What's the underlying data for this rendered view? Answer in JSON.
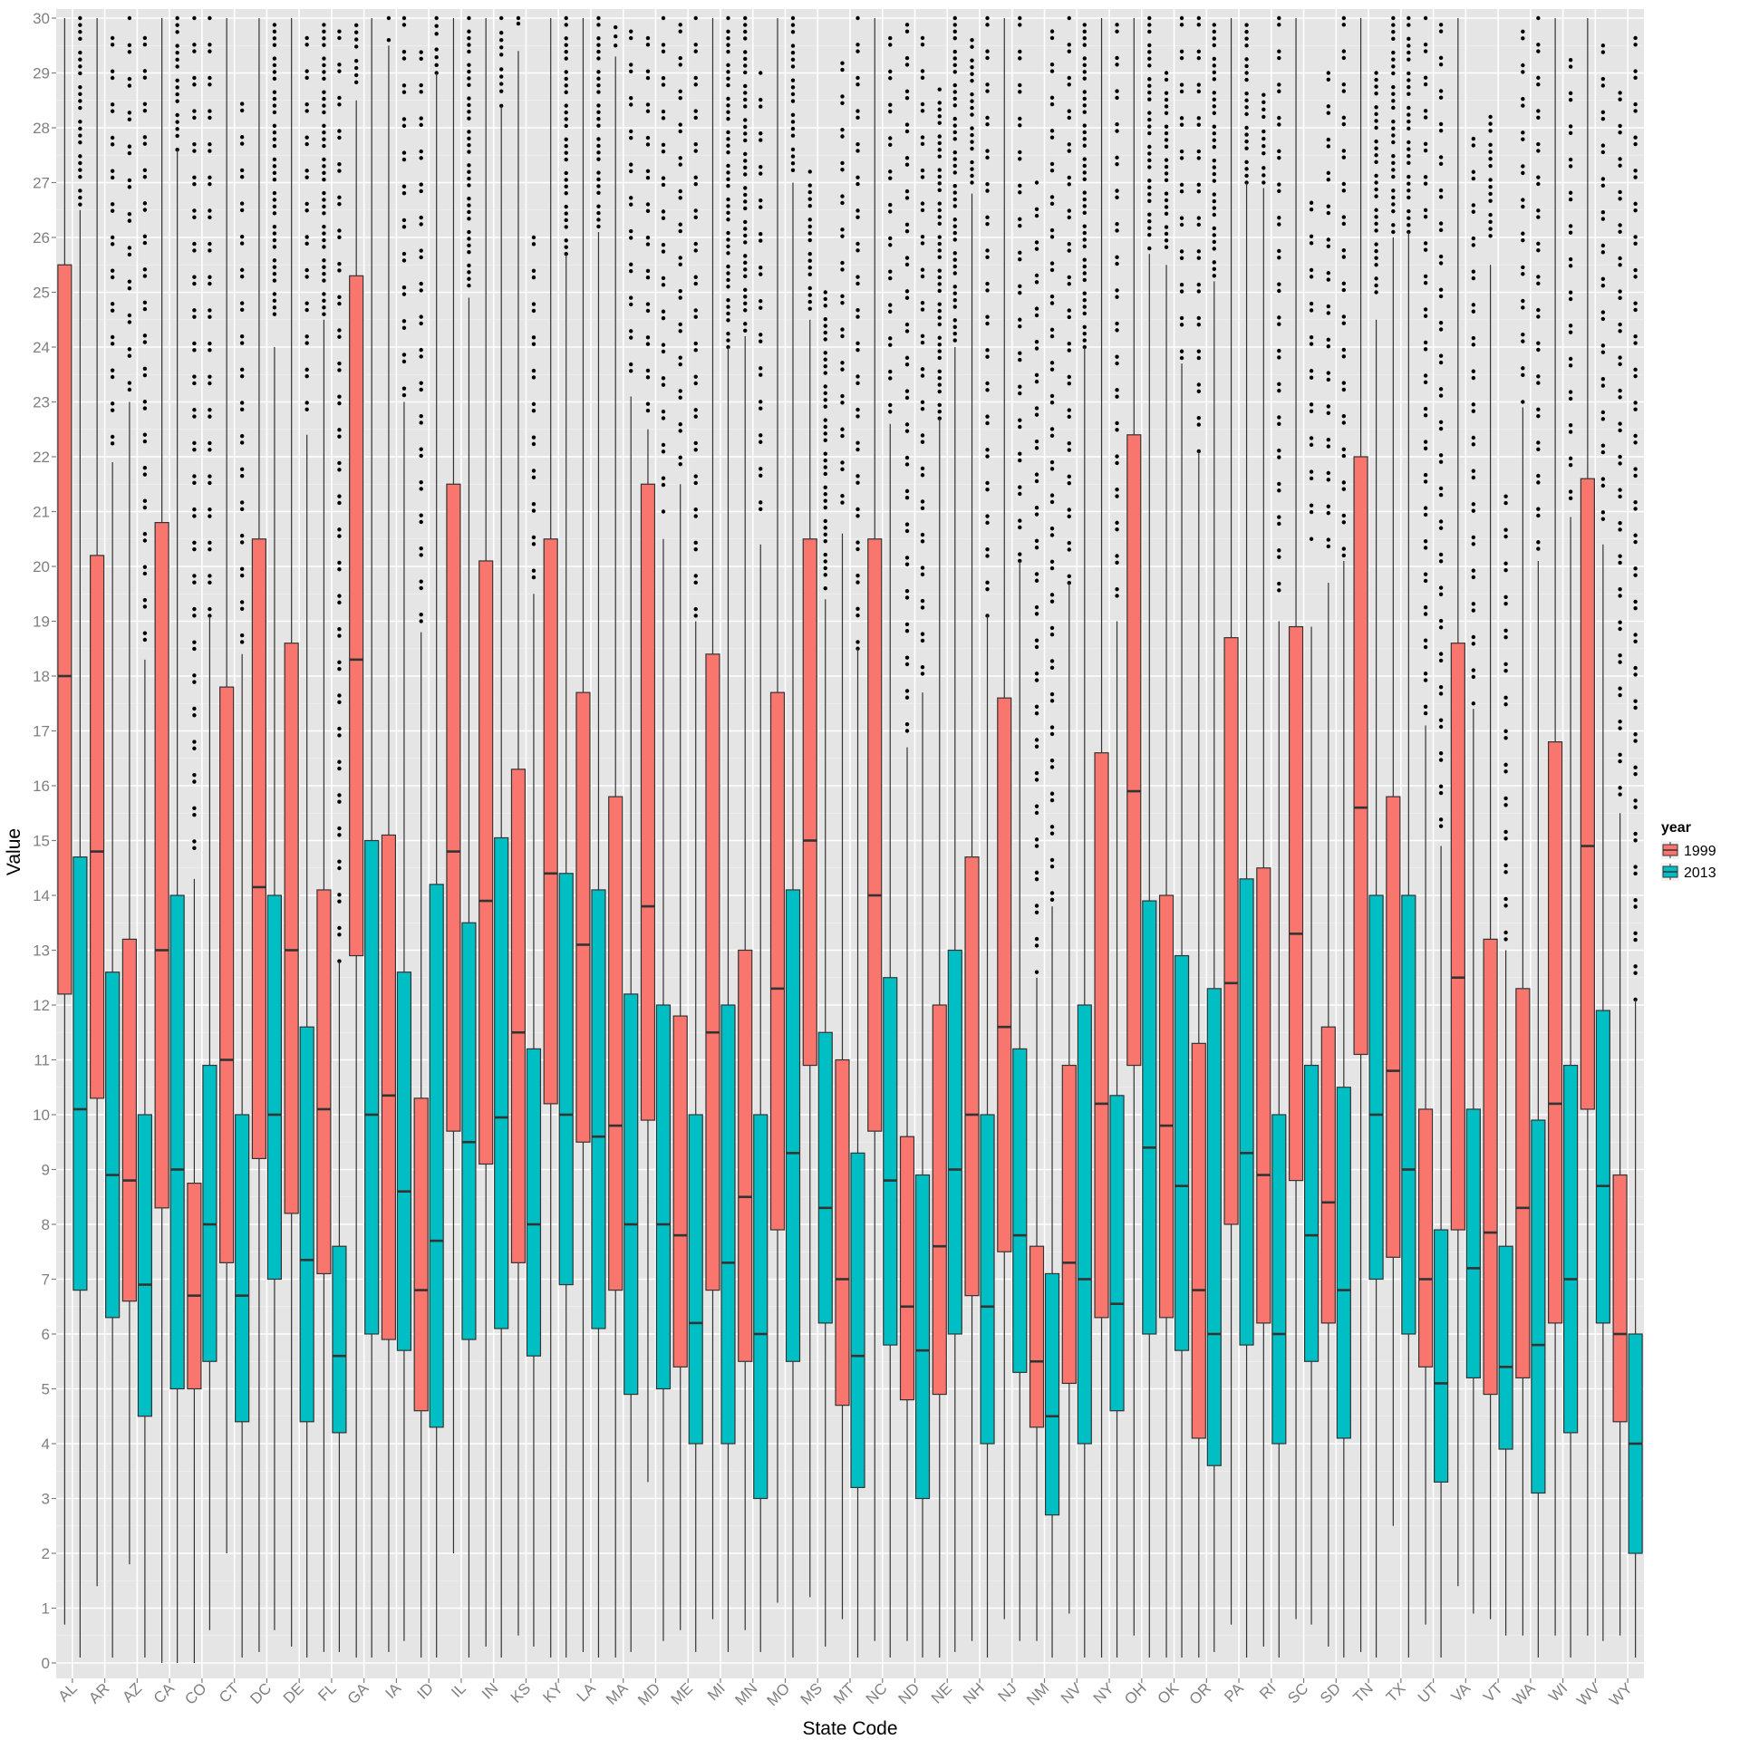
{
  "chart_data": {
    "type": "boxplot",
    "xlabel": "State Code",
    "ylabel": "Value",
    "ylim": [
      0,
      30
    ],
    "yticks": [
      0,
      1,
      2,
      3,
      4,
      5,
      6,
      7,
      8,
      9,
      10,
      11,
      12,
      13,
      14,
      15,
      16,
      17,
      18,
      19,
      20,
      21,
      22,
      23,
      24,
      25,
      26,
      27,
      28,
      29,
      30
    ],
    "grid": true,
    "legend": {
      "title": "year",
      "position": "right",
      "entries": [
        {
          "name": "1999",
          "color": "#F8766D"
        },
        {
          "name": "2013",
          "color": "#00BFC4"
        }
      ]
    },
    "stat_fields": [
      "whisker_low",
      "q1",
      "median",
      "q3",
      "whisker_high",
      "outliers_from",
      "outliers_to"
    ],
    "groups": [
      {
        "state": "AL",
        "y1999": [
          0.7,
          12.2,
          18.0,
          25.5,
          30,
          null,
          null
        ],
        "y2013": [
          0.1,
          6.8,
          10.1,
          14.7,
          26.5,
          26.6,
          30
        ]
      },
      {
        "state": "AR",
        "y1999": [
          1.4,
          10.3,
          14.8,
          20.2,
          30,
          null,
          null
        ],
        "y2013": [
          0.1,
          6.3,
          8.9,
          12.6,
          21.9,
          22,
          30
        ]
      },
      {
        "state": "AZ",
        "y1999": [
          1.8,
          6.6,
          8.8,
          13.2,
          23,
          23.1,
          30
        ],
        "y2013": [
          0.1,
          4.5,
          6.9,
          10.0,
          18.3,
          18.3,
          30
        ]
      },
      {
        "state": "CA",
        "y1999": [
          0,
          8.3,
          13.0,
          20.8,
          30,
          null,
          null
        ],
        "y2013": [
          0,
          5.0,
          9.0,
          14.0,
          27.6,
          27.6,
          30
        ]
      },
      {
        "state": "CO",
        "y1999": [
          0,
          5.0,
          6.7,
          8.75,
          14.3,
          14.5,
          30
        ],
        "y2013": [
          0.6,
          5.5,
          8.0,
          10.9,
          19.1,
          19.1,
          30
        ]
      },
      {
        "state": "CT",
        "y1999": [
          2.0,
          7.3,
          11.0,
          17.8,
          30,
          null,
          null
        ],
        "y2013": [
          0.1,
          4.4,
          6.7,
          10.0,
          18.4,
          18.5,
          28.8
        ]
      },
      {
        "state": "DC",
        "y1999": [
          0.2,
          9.2,
          14.15,
          20.5,
          30,
          null,
          null
        ],
        "y2013": [
          0.6,
          7.0,
          10.0,
          14.0,
          24,
          24.6,
          30
        ]
      },
      {
        "state": "DE",
        "y1999": [
          0.3,
          8.2,
          13.0,
          18.6,
          30,
          null,
          null
        ],
        "y2013": [
          0.1,
          4.4,
          7.35,
          11.6,
          22.4,
          22.5,
          30
        ]
      },
      {
        "state": "FL",
        "y1999": [
          0.2,
          7.1,
          10.1,
          14.1,
          24.5,
          24.6,
          30
        ],
        "y2013": [
          0.2,
          4.2,
          5.6,
          7.6,
          12.8,
          12.8,
          30
        ]
      },
      {
        "state": "GA",
        "y1999": [
          0.1,
          12.9,
          18.3,
          25.3,
          28.5,
          28.7,
          30
        ],
        "y2013": [
          0.1,
          6.0,
          10.0,
          15.0,
          30,
          null,
          null
        ]
      },
      {
        "state": "IA",
        "y1999": [
          0.2,
          5.9,
          10.35,
          15.1,
          29.5,
          29.6,
          30
        ],
        "y2013": [
          0.4,
          5.7,
          8.6,
          12.6,
          23,
          23,
          30
        ]
      },
      {
        "state": "ID",
        "y1999": [
          0.1,
          4.6,
          6.8,
          10.3,
          18.8,
          19,
          29.5
        ],
        "y2013": [
          0.1,
          4.3,
          7.7,
          14.2,
          29,
          29,
          30
        ]
      },
      {
        "state": "IL",
        "y1999": [
          2.0,
          9.7,
          14.8,
          21.5,
          30,
          null,
          null
        ],
        "y2013": [
          0.1,
          5.9,
          9.5,
          13.5,
          24.9,
          25,
          30
        ]
      },
      {
        "state": "IN",
        "y1999": [
          0.3,
          9.1,
          13.9,
          20.1,
          30,
          null,
          null
        ],
        "y2013": [
          0.1,
          6.1,
          9.95,
          15.05,
          28.4,
          28.4,
          30
        ]
      },
      {
        "state": "KS",
        "y1999": [
          0.5,
          7.3,
          11.5,
          16.3,
          29.4,
          29.8,
          30
        ],
        "y2013": [
          0.3,
          5.6,
          8.0,
          11.2,
          19.5,
          19.8,
          26
        ]
      },
      {
        "state": "KY",
        "y1999": [
          0.1,
          10.2,
          14.4,
          20.5,
          30,
          null,
          null
        ],
        "y2013": [
          0.1,
          6.9,
          10.0,
          14.4,
          25.7,
          25.7,
          30
        ]
      },
      {
        "state": "LA",
        "y1999": [
          0.2,
          9.5,
          13.1,
          17.7,
          30,
          null,
          null
        ],
        "y2013": [
          0.1,
          6.1,
          9.6,
          14.1,
          26.1,
          26.2,
          30
        ]
      },
      {
        "state": "MA",
        "y1999": [
          0.1,
          6.8,
          9.8,
          15.8,
          29.3,
          29.5,
          30
        ],
        "y2013": [
          0.2,
          4.9,
          8.0,
          12.2,
          23.1,
          23.2,
          30
        ]
      },
      {
        "state": "MD",
        "y1999": [
          3.3,
          9.9,
          13.8,
          21.5,
          22.5,
          22.6,
          30
        ],
        "y2013": [
          0.4,
          5.0,
          8.0,
          12.0,
          20.5,
          21,
          30
        ]
      },
      {
        "state": "ME",
        "y1999": [
          0.6,
          5.4,
          7.8,
          11.8,
          21.5,
          21.5,
          30
        ],
        "y2013": [
          0.2,
          4.0,
          6.2,
          10.0,
          19,
          19.1,
          30
        ]
      },
      {
        "state": "MI",
        "y1999": [
          0.8,
          6.8,
          11.5,
          18.4,
          30,
          null,
          null
        ],
        "y2013": [
          0.2,
          4.0,
          7.3,
          12.0,
          24,
          24,
          30
        ]
      },
      {
        "state": "MN",
        "y1999": [
          0.6,
          5.5,
          8.5,
          13.0,
          24.2,
          24.3,
          30
        ],
        "y2013": [
          0.2,
          3.0,
          6.0,
          10.0,
          20.4,
          20.8,
          29
        ]
      },
      {
        "state": "MO",
        "y1999": [
          1.1,
          7.9,
          12.3,
          17.7,
          30,
          null,
          null
        ],
        "y2013": [
          0.1,
          5.5,
          9.3,
          14.1,
          27,
          27.1,
          30
        ]
      },
      {
        "state": "MS",
        "y1999": [
          1.2,
          10.9,
          15.0,
          20.5,
          24.5,
          24.7,
          27.2
        ],
        "y2013": [
          0.3,
          6.2,
          8.3,
          11.5,
          19.4,
          19.6,
          25
        ]
      },
      {
        "state": "MT",
        "y1999": [
          0.8,
          4.7,
          7.0,
          11.0,
          20.6,
          20.8,
          29.3
        ],
        "y2013": [
          0.1,
          3.2,
          5.6,
          9.3,
          18.5,
          18.5,
          30
        ]
      },
      {
        "state": "NC",
        "y1999": [
          0.4,
          9.7,
          14.0,
          20.5,
          30,
          null,
          null
        ],
        "y2013": [
          0.1,
          5.8,
          8.8,
          12.5,
          22.6,
          22.7,
          30
        ]
      },
      {
        "state": "ND",
        "y1999": [
          0.4,
          4.8,
          6.5,
          9.6,
          16.7,
          17,
          30
        ],
        "y2013": [
          0.1,
          3.0,
          5.7,
          8.9,
          17.7,
          17.8,
          30
        ]
      },
      {
        "state": "NE",
        "y1999": [
          0.1,
          4.9,
          7.6,
          12.0,
          22.7,
          22.7,
          28.7
        ],
        "y2013": [
          0.2,
          6.0,
          9.0,
          13.0,
          24,
          24,
          30
        ]
      },
      {
        "state": "NH",
        "y1999": [
          0.4,
          6.7,
          10.0,
          14.7,
          26.8,
          27,
          29.6
        ],
        "y2013": [
          0.1,
          4.0,
          6.5,
          10.0,
          19.1,
          19.1,
          30
        ]
      },
      {
        "state": "NJ",
        "y1999": [
          0.8,
          7.5,
          11.6,
          17.6,
          30,
          null,
          null
        ],
        "y2013": [
          0.4,
          5.3,
          7.8,
          11.2,
          20.1,
          20.1,
          30
        ]
      },
      {
        "state": "NM",
        "y1999": [
          0.4,
          4.3,
          5.5,
          7.6,
          12.5,
          12.6,
          27
        ],
        "y2013": [
          0.1,
          2.7,
          4.5,
          7.1,
          13.8,
          13.8,
          30
        ]
      },
      {
        "state": "NV",
        "y1999": [
          0.9,
          5.1,
          7.3,
          10.9,
          19.7,
          19.7,
          30
        ],
        "y2013": [
          0.1,
          4.0,
          7.0,
          12.0,
          24,
          24,
          30
        ]
      },
      {
        "state": "NY",
        "y1999": [
          0.1,
          6.3,
          10.2,
          16.6,
          30,
          null,
          null
        ],
        "y2013": [
          0.1,
          4.6,
          6.55,
          10.35,
          19,
          19.1,
          30
        ]
      },
      {
        "state": "OH",
        "y1999": [
          0.5,
          10.9,
          15.9,
          22.4,
          30,
          null,
          null
        ],
        "y2013": [
          0.1,
          6.0,
          9.4,
          13.9,
          25.7,
          25.8,
          30
        ]
      },
      {
        "state": "OK",
        "y1999": [
          0.1,
          6.3,
          9.8,
          14.0,
          25.5,
          25.7,
          29
        ],
        "y2013": [
          0.1,
          5.7,
          8.7,
          12.9,
          23.7,
          23.8,
          30
        ]
      },
      {
        "state": "OR",
        "y1999": [
          0.1,
          4.1,
          6.8,
          11.3,
          22.1,
          22.1,
          30
        ],
        "y2013": [
          0.2,
          3.6,
          6.0,
          12.3,
          25.2,
          25.3,
          30
        ]
      },
      {
        "state": "PA",
        "y1999": [
          0.7,
          8.0,
          12.4,
          18.7,
          30,
          null,
          null
        ],
        "y2013": [
          0.1,
          5.8,
          9.3,
          14.3,
          27,
          27,
          30
        ]
      },
      {
        "state": "RI",
        "y1999": [
          0.3,
          6.2,
          8.9,
          14.5,
          26.9,
          27,
          28.6
        ],
        "y2013": [
          0.1,
          4.0,
          6.0,
          10.0,
          19,
          19.2,
          30
        ]
      },
      {
        "state": "SC",
        "y1999": [
          0.8,
          8.8,
          13.3,
          18.9,
          30,
          null,
          null
        ],
        "y2013": [
          0.7,
          5.5,
          7.8,
          10.9,
          18.9,
          20.5,
          27
        ]
      },
      {
        "state": "SD",
        "y1999": [
          0.3,
          6.2,
          8.4,
          11.6,
          19.7,
          20,
          29
        ],
        "y2013": [
          0.1,
          4.1,
          6.8,
          10.5,
          20.1,
          20.2,
          30
        ]
      },
      {
        "state": "TN",
        "y1999": [
          0.2,
          11.1,
          15.6,
          22.0,
          30,
          null,
          null
        ],
        "y2013": [
          0.1,
          7.0,
          10.0,
          14.0,
          24.5,
          25,
          29
        ]
      },
      {
        "state": "TX",
        "y1999": [
          2.5,
          7.4,
          10.8,
          15.8,
          26,
          26.1,
          30
        ],
        "y2013": [
          0.1,
          6.0,
          9.0,
          14.0,
          26.1,
          26.1,
          30
        ]
      },
      {
        "state": "UT",
        "y1999": [
          0.7,
          5.4,
          7.0,
          10.1,
          17.1,
          17.2,
          30
        ],
        "y2013": [
          0.1,
          3.3,
          5.1,
          7.9,
          14.9,
          14.9,
          30
        ]
      },
      {
        "state": "VA",
        "y1999": [
          1.4,
          7.9,
          12.5,
          18.6,
          30,
          null,
          null
        ],
        "y2013": [
          0.9,
          5.2,
          7.2,
          10.1,
          17.4,
          17.5,
          27.8
        ]
      },
      {
        "state": "VT",
        "y1999": [
          0.8,
          4.9,
          7.85,
          13.2,
          25.5,
          25.9,
          28.2
        ],
        "y2013": [
          0.5,
          3.9,
          5.4,
          7.6,
          13,
          13.2,
          21.4
        ]
      },
      {
        "state": "WA",
        "y1999": [
          0.5,
          5.2,
          8.3,
          12.3,
          22.9,
          23,
          30
        ],
        "y2013": [
          0.1,
          3.1,
          5.8,
          9.9,
          20.1,
          20.2,
          30
        ]
      },
      {
        "state": "WI",
        "y1999": [
          0.5,
          6.2,
          10.2,
          16.8,
          30,
          null,
          null
        ],
        "y2013": [
          0.1,
          4.2,
          7.0,
          10.9,
          20.9,
          21,
          29.6
        ]
      },
      {
        "state": "WV",
        "y1999": [
          0.5,
          10.1,
          14.9,
          21.6,
          30,
          null,
          null
        ],
        "y2013": [
          0.4,
          6.2,
          8.7,
          11.9,
          20.4,
          20.5,
          29.5
        ]
      },
      {
        "state": "WY",
        "y1999": [
          0.5,
          4.4,
          6.0,
          8.9,
          15.5,
          15.6,
          29
        ],
        "y2013": [
          0.1,
          2.0,
          4.0,
          6.0,
          12.1,
          12.1,
          30
        ]
      }
    ]
  }
}
